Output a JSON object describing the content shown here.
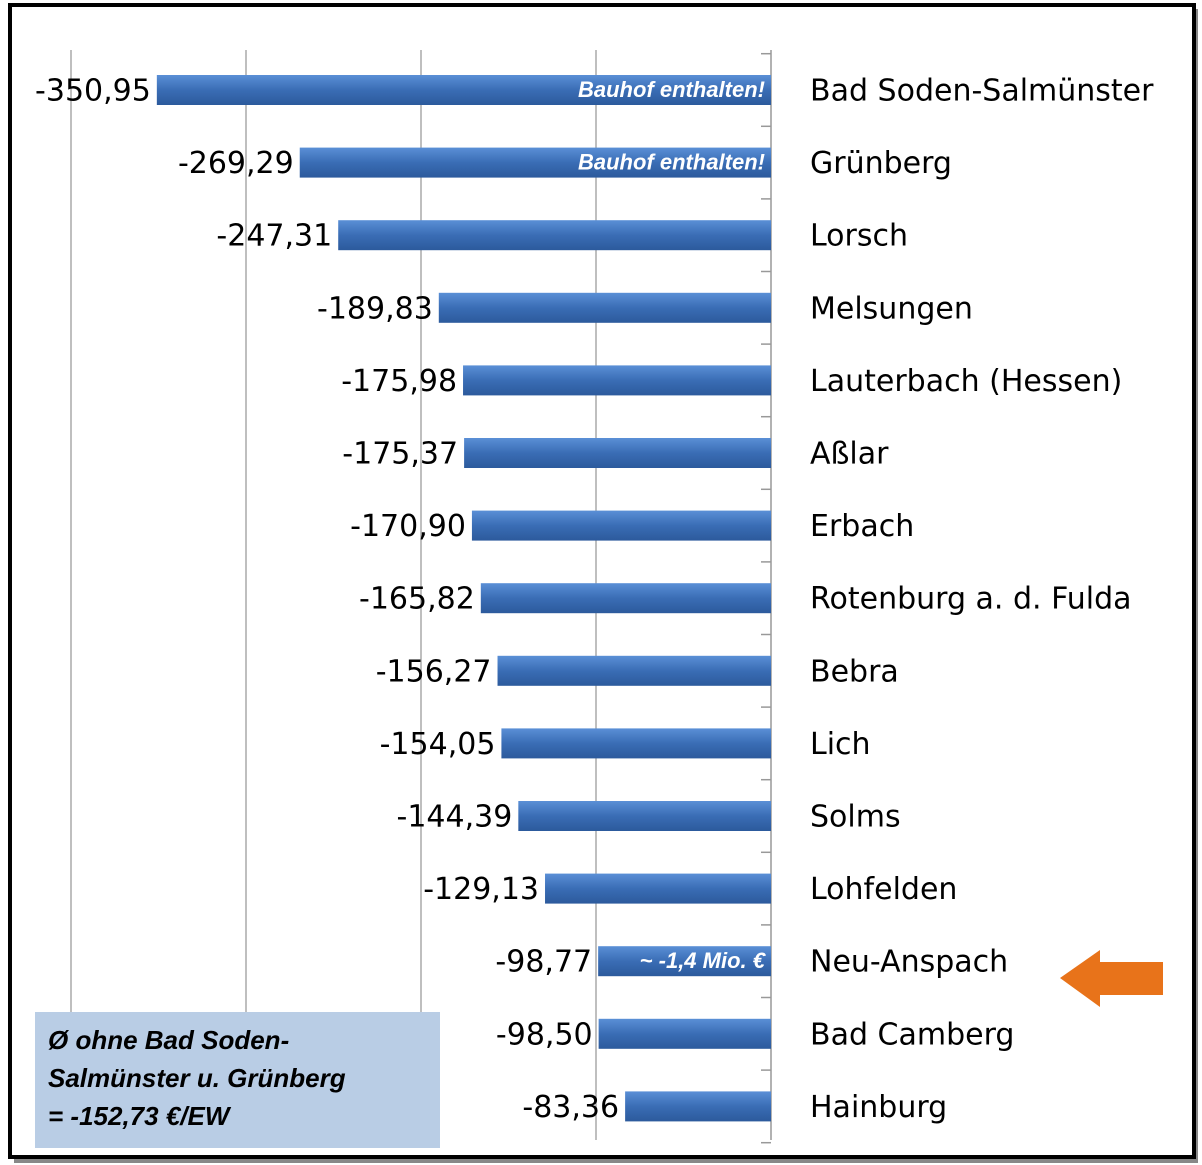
{
  "chart_data": {
    "type": "bar",
    "orientation": "horizontal",
    "categories": [
      "Bad Soden-Salmünster",
      "Grünberg",
      "Lorsch",
      "Melsungen",
      "Lauterbach (Hessen)",
      "Aßlar",
      "Erbach",
      "Rotenburg a. d. Fulda",
      "Bebra",
      "Lich",
      "Solms",
      "Lohfelden",
      "Neu-Anspach",
      "Bad Camberg",
      "Hainburg"
    ],
    "values": [
      -350.95,
      -269.29,
      -247.31,
      -189.83,
      -175.98,
      -175.37,
      -170.9,
      -165.82,
      -156.27,
      -154.05,
      -144.39,
      -129.13,
      -98.77,
      -98.5,
      -83.36
    ],
    "value_labels": [
      "-350,95",
      "-269,29",
      "-247,31",
      "-189,83",
      "-175,98",
      "-175,37",
      "-170,90",
      "-165,82",
      "-156,27",
      "-154,05",
      "-144,39",
      "-129,13",
      "-98,77",
      "-98,50",
      "-83,36"
    ],
    "color": "#3a6db5",
    "xlim": [
      -400,
      0
    ],
    "xticks": [
      -400,
      -300,
      -200,
      -100,
      0
    ],
    "grid": true,
    "annotations": [
      {
        "text": "Bauhof enthalten!",
        "category": "Bad Soden-Salmünster"
      },
      {
        "text": "Bauhof enthalten!",
        "category": "Grünberg"
      },
      {
        "text": "~ -1,4 Mio. €",
        "category": "Neu-Anspach"
      }
    ],
    "note_box": [
      "Ø ohne Bad Soden-",
      "Salmünster u. Grünberg",
      "= -152,73 €/EW"
    ]
  }
}
